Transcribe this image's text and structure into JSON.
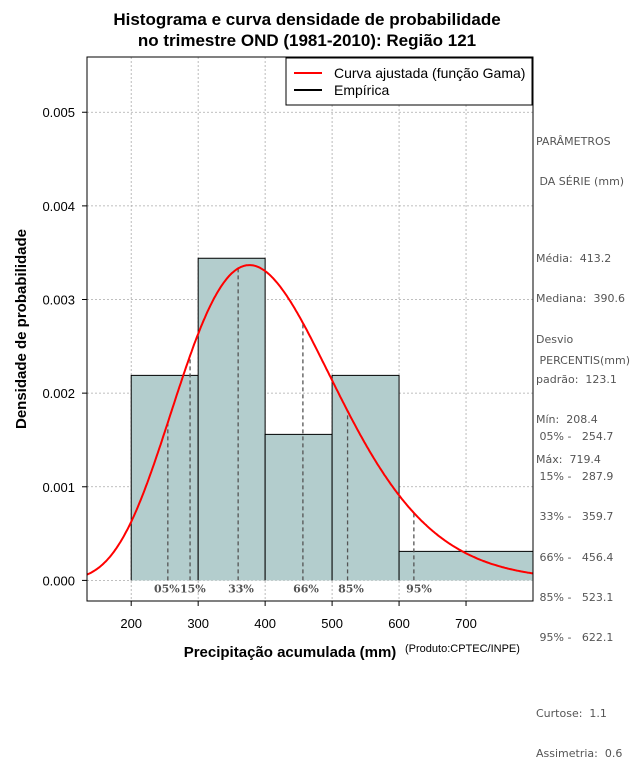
{
  "chart_data": {
    "type": "bar",
    "title": [
      "Histograma e curva densidade de probabilidade",
      "no trimestre OND (1981-2010): Região 121"
    ],
    "xlabel": "Precipitação acumulada (mm)",
    "ylabel": "Densidade de probabilidade",
    "credit": "(Produto:CPTEC/INPE)",
    "xlim": [
      134,
      800
    ],
    "ylim": [
      -0.00022,
      0.00559
    ],
    "x_ticks": [
      200,
      300,
      400,
      500,
      600,
      700
    ],
    "y_ticks": [
      0.0,
      0.001,
      0.002,
      0.003,
      0.004,
      0.005
    ],
    "y_tick_labels": [
      "0.000",
      "0.001",
      "0.002",
      "0.003",
      "0.004",
      "0.005"
    ],
    "grid": true,
    "bins": [
      {
        "start": 200,
        "end": 300,
        "density": 0.00219
      },
      {
        "start": 300,
        "end": 400,
        "density": 0.00344
      },
      {
        "start": 400,
        "end": 500,
        "density": 0.00156
      },
      {
        "start": 500,
        "end": 600,
        "density": 0.00219
      },
      {
        "start": 600,
        "end": 800,
        "density": 0.00031
      }
    ],
    "gamma_fit": {
      "mean": 413.2,
      "sd": 123.1
    },
    "legend": [
      {
        "label": "Curva ajustada (função Gama)",
        "color": "#ff0000"
      },
      {
        "label": "Empírica",
        "color": "#000000"
      }
    ],
    "percentiles": [
      {
        "label": "05%",
        "value": 254.7
      },
      {
        "label": "15%",
        "value": 287.9
      },
      {
        "label": "33%",
        "value": 359.7
      },
      {
        "label": "66%",
        "value": 456.4
      },
      {
        "label": "85%",
        "value": 523.1
      },
      {
        "label": "95%",
        "value": 622.1
      }
    ],
    "colors": {
      "bar": "#b3cdcd",
      "curve": "#ff0000",
      "grid": "#aaaaaa",
      "percentile": "#555555"
    }
  },
  "side_panel": {
    "params_title": [
      "PARÂMETROS",
      " DA SÉRIE (mm)"
    ],
    "params": [
      "Média:  413.2",
      "Mediana:  390.6",
      "Desvio",
      "padrão:  123.1",
      "Mín:  208.4",
      "Máx:  719.4"
    ],
    "percentis_title": " PERCENTIS(mm)",
    "percentis": [
      " 05% -   254.7",
      " 15% -   287.9",
      " 33% -   359.7",
      " 66% -   456.4",
      " 85% -   523.1",
      " 95% -   622.1"
    ],
    "stats": [
      "Curtose:  1.1",
      "Assimetria:  0.6"
    ]
  }
}
